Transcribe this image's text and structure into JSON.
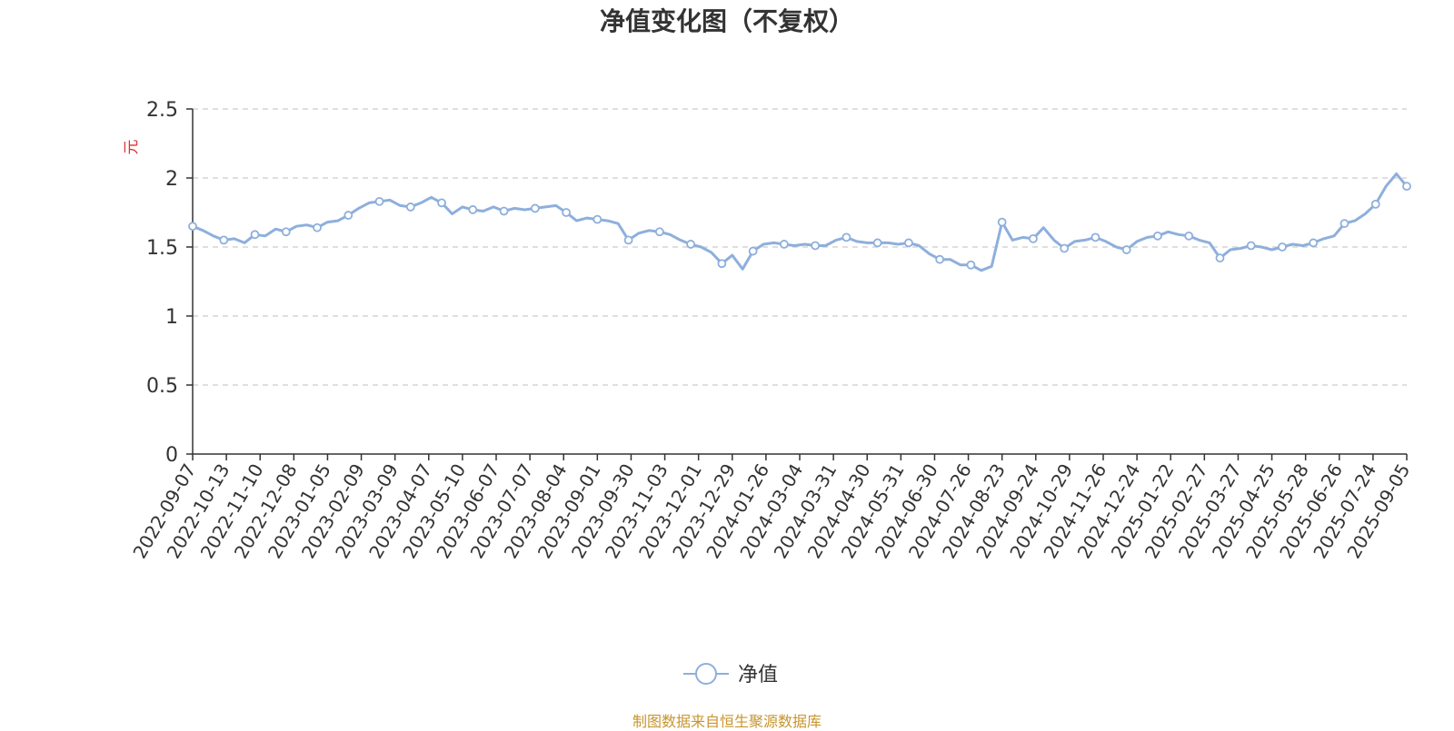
{
  "chart_data": {
    "type": "line",
    "title": "净值变化图（不复权）",
    "ylabel": "元",
    "ylim": [
      0,
      2.5
    ],
    "y_ticks": [
      "0",
      "0.5",
      "1",
      "1.5",
      "2",
      "2.5"
    ],
    "x_tick_labels": [
      "2022-09-07",
      "2022-10-13",
      "2022-11-10",
      "2022-12-08",
      "2023-01-05",
      "2023-02-09",
      "2023-03-09",
      "2023-04-07",
      "2023-05-10",
      "2023-06-07",
      "2023-07-07",
      "2023-08-04",
      "2023-09-01",
      "2023-09-30",
      "2023-11-03",
      "2023-12-01",
      "2023-12-29",
      "2024-01-26",
      "2024-03-04",
      "2024-03-31",
      "2024-04-30",
      "2024-05-31",
      "2024-06-30",
      "2024-07-26",
      "2024-08-23",
      "2024-09-24",
      "2024-10-29",
      "2024-11-26",
      "2024-12-24",
      "2025-01-22",
      "2025-02-27",
      "2025-03-27",
      "2025-04-25",
      "2025-05-28",
      "2025-06-26",
      "2025-07-24",
      "2025-09-05"
    ],
    "grid": true,
    "legend_position": "bottom",
    "series": [
      {
        "name": "净值",
        "color": "#8eafdc",
        "values": [
          1.65,
          1.62,
          1.58,
          1.55,
          1.56,
          1.53,
          1.59,
          1.58,
          1.63,
          1.61,
          1.65,
          1.66,
          1.64,
          1.68,
          1.69,
          1.73,
          1.78,
          1.82,
          1.83,
          1.84,
          1.8,
          1.79,
          1.82,
          1.86,
          1.82,
          1.74,
          1.79,
          1.77,
          1.76,
          1.79,
          1.76,
          1.78,
          1.77,
          1.78,
          1.79,
          1.8,
          1.75,
          1.69,
          1.71,
          1.7,
          1.69,
          1.67,
          1.55,
          1.6,
          1.62,
          1.61,
          1.59,
          1.55,
          1.52,
          1.5,
          1.46,
          1.38,
          1.44,
          1.34,
          1.47,
          1.52,
          1.53,
          1.52,
          1.51,
          1.52,
          1.51,
          1.51,
          1.55,
          1.57,
          1.54,
          1.53,
          1.53,
          1.53,
          1.52,
          1.53,
          1.51,
          1.45,
          1.41,
          1.41,
          1.37,
          1.37,
          1.33,
          1.36,
          1.68,
          1.55,
          1.57,
          1.56,
          1.64,
          1.55,
          1.49,
          1.54,
          1.55,
          1.57,
          1.54,
          1.5,
          1.48,
          1.54,
          1.57,
          1.58,
          1.61,
          1.59,
          1.58,
          1.55,
          1.53,
          1.42,
          1.48,
          1.49,
          1.51,
          1.5,
          1.48,
          1.5,
          1.52,
          1.51,
          1.53,
          1.56,
          1.58,
          1.67,
          1.69,
          1.74,
          1.81,
          1.94,
          2.03,
          1.94
        ]
      }
    ]
  },
  "legend": {
    "label": "净值"
  },
  "footer": {
    "source": "制图数据来自恒生聚源数据库"
  }
}
